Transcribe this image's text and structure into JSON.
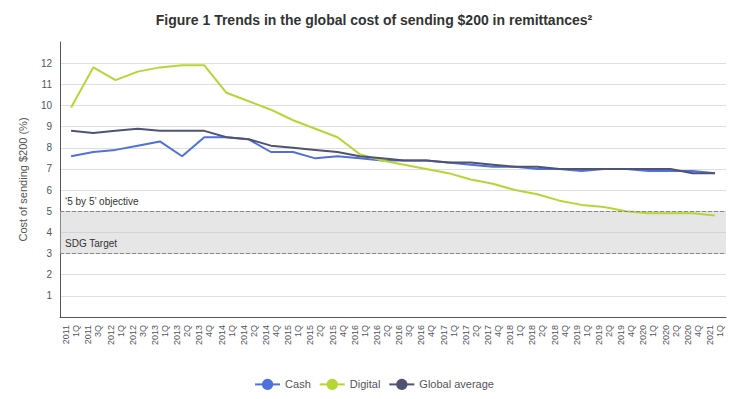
{
  "chart_data": {
    "type": "line",
    "title": "Figure 1 Trends in the global cost of sending $200 in remittances²",
    "ylabel": "Cost of sending $200 (%)",
    "categories": [
      "2011\n1Q",
      "2011\n3Q",
      "2012\n1Q",
      "2012\n3Q",
      "2013\n1Q",
      "2013\n2Q",
      "2013\n4Q",
      "2014\n1Q",
      "2014\n2Q",
      "2014\n4Q",
      "2015\n1Q",
      "2015\n2Q",
      "2015\n4Q",
      "2016\n1Q",
      "2016\n2Q",
      "2016\n3Q",
      "2016\n4Q",
      "2017\n1Q",
      "2017\n2Q",
      "2017\n4Q",
      "2018\n1Q",
      "2018\n2Q",
      "2018\n4Q",
      "2019\n1Q",
      "2019\n2Q",
      "2019\n4Q",
      "2020\n1Q",
      "2020\n2Q",
      "2020\n4Q",
      "2021\n1Q"
    ],
    "series": [
      {
        "name": "Cash",
        "values": [
          7.6,
          7.8,
          7.9,
          8.1,
          8.3,
          7.6,
          8.5,
          8.5,
          8.4,
          7.8,
          7.8,
          7.5,
          7.6,
          7.5,
          7.4,
          7.4,
          7.4,
          7.3,
          7.2,
          7.1,
          7.1,
          7.0,
          7.0,
          6.9,
          7.0,
          7.0,
          6.9,
          6.9,
          6.9,
          6.8
        ]
      },
      {
        "name": "Digital",
        "values": [
          9.9,
          11.8,
          11.2,
          11.6,
          11.8,
          11.9,
          11.9,
          10.6,
          10.2,
          9.8,
          9.3,
          8.9,
          8.5,
          7.7,
          7.4,
          7.2,
          7.0,
          6.8,
          6.5,
          6.3,
          6.0,
          5.8,
          5.5,
          5.3,
          5.2,
          5.0,
          4.9,
          4.9,
          4.9,
          4.8
        ]
      },
      {
        "name": "Global average",
        "values": [
          8.8,
          8.7,
          8.8,
          8.9,
          8.8,
          8.8,
          8.8,
          8.5,
          8.4,
          8.1,
          8.0,
          7.9,
          7.8,
          7.6,
          7.5,
          7.4,
          7.4,
          7.3,
          7.3,
          7.2,
          7.1,
          7.1,
          7.0,
          7.0,
          7.0,
          7.0,
          7.0,
          7.0,
          6.8,
          6.8
        ]
      }
    ],
    "reference_lines": [
      {
        "label": "‘5 by 5’ objective",
        "y": 5.0
      },
      {
        "label": "SDG Target",
        "y": 3.0
      }
    ],
    "ylim": [
      0,
      13
    ],
    "yticks": [
      1,
      2,
      3,
      4,
      5,
      6,
      7,
      8,
      9,
      10,
      11,
      12
    ],
    "grid": true,
    "legend": "bottom"
  }
}
